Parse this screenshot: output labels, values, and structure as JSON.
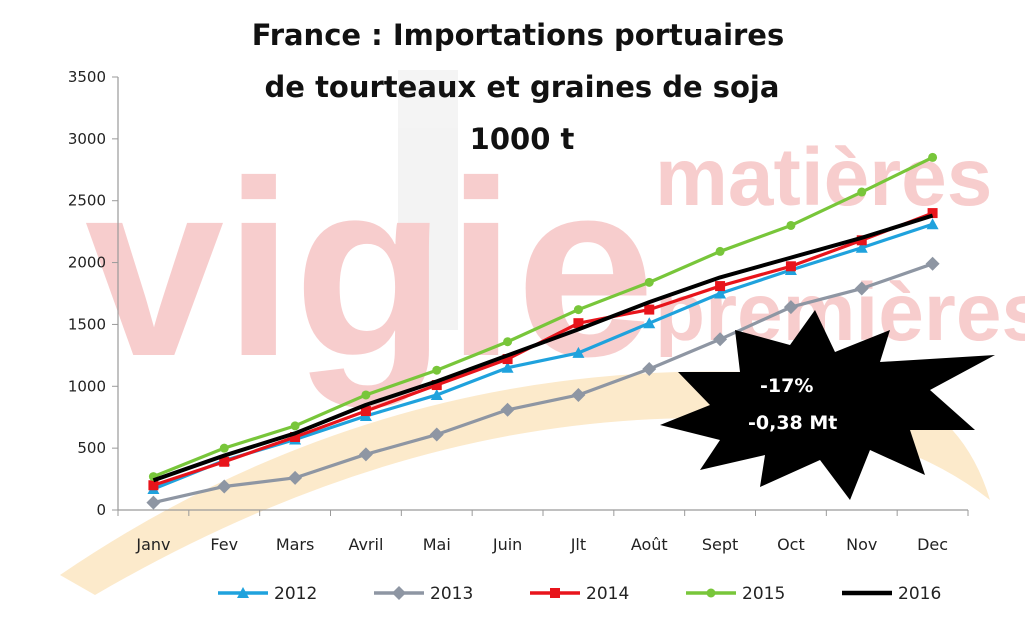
{
  "watermark": {
    "brand_main": "vigie",
    "brand_line1": "matières",
    "brand_line2": "premières"
  },
  "chart_data": {
    "type": "line",
    "title_lines": [
      "France : Importations portuaires",
      "de tourteaux et graines de soja",
      "1000 t"
    ],
    "categories": [
      "Janv",
      "Fev",
      "Mars",
      "Avril",
      "Mai",
      "Juin",
      "Jlt",
      "Août",
      "Sept",
      "Oct",
      "Nov",
      "Dec"
    ],
    "ylim": [
      0,
      3500
    ],
    "yticks": [
      "0",
      "500",
      "1000",
      "1500",
      "2000",
      "2500",
      "3000",
      "3500"
    ],
    "grid": false,
    "legend_position": "bottom",
    "series": [
      {
        "name": "2012",
        "color": "#1fa2dd",
        "marker": "triangle",
        "values": [
          170,
          400,
          570,
          760,
          930,
          1150,
          1270,
          1510,
          1750,
          1940,
          2120,
          2310
        ]
      },
      {
        "name": "2013",
        "color": "#8e96a3",
        "marker": "diamond",
        "values": [
          60,
          190,
          260,
          450,
          610,
          810,
          930,
          1140,
          1380,
          1640,
          1790,
          1990
        ]
      },
      {
        "name": "2014",
        "color": "#e8141b",
        "marker": "square",
        "values": [
          200,
          390,
          590,
          800,
          1010,
          1220,
          1510,
          1620,
          1810,
          1970,
          2180,
          2400
        ]
      },
      {
        "name": "2015",
        "color": "#78c63a",
        "marker": "circle",
        "values": [
          270,
          500,
          680,
          930,
          1130,
          1360,
          1620,
          1840,
          2090,
          2300,
          2570,
          2850
        ]
      },
      {
        "name": "2016",
        "color": "#000000",
        "marker": "none",
        "values": [
          240,
          440,
          620,
          850,
          1040,
          1250,
          1460,
          1680,
          1880,
          2040,
          2200,
          2380
        ]
      }
    ],
    "annotation": {
      "line1": "-17%",
      "line2": "-0,38 Mt"
    }
  }
}
